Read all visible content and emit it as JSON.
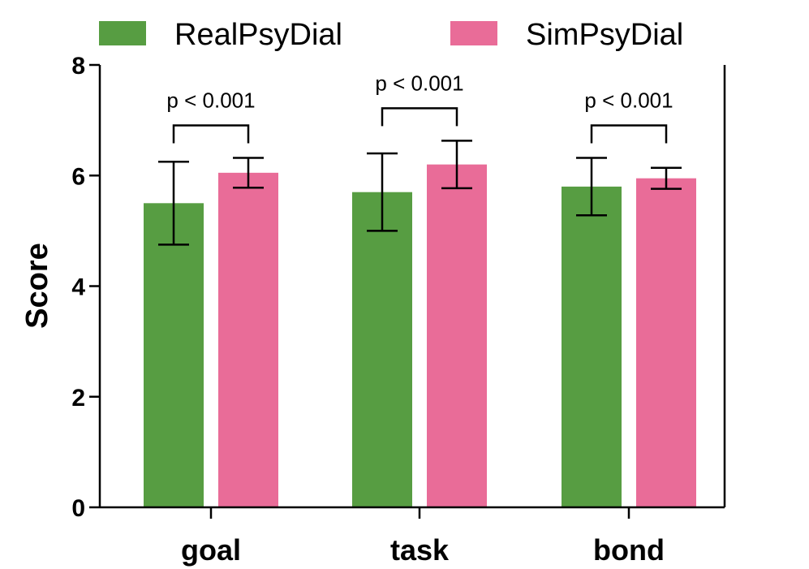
{
  "chart_data": {
    "type": "bar",
    "title": "",
    "xlabel": "",
    "ylabel": "Score",
    "ylim": [
      0,
      8
    ],
    "yticks": [
      0,
      2,
      4,
      6,
      8
    ],
    "categories": [
      "goal",
      "task",
      "bond"
    ],
    "series": [
      {
        "name": "RealPsyDial",
        "color": "#579d42",
        "values": [
          5.5,
          5.7,
          5.8
        ],
        "errors": [
          0.75,
          0.7,
          0.52
        ]
      },
      {
        "name": "SimPsyDial",
        "color": "#e96c98",
        "values": [
          6.05,
          6.2,
          5.95
        ],
        "errors": [
          0.27,
          0.43,
          0.19
        ]
      }
    ],
    "annotations": [
      "p < 0.001",
      "p < 0.001",
      "p < 0.001"
    ],
    "legend": "top",
    "grid": false
  }
}
